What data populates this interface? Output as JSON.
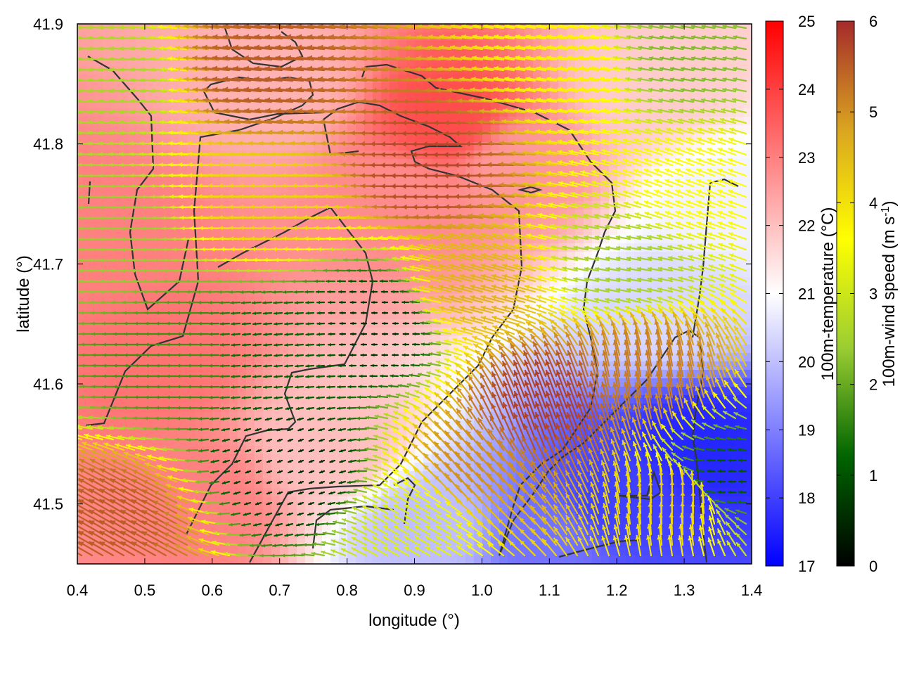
{
  "chart_data": {
    "type": "heatmap",
    "xlabel": "longitude (°)",
    "ylabel": "latitude (°)",
    "xlim": [
      0.4,
      1.4
    ],
    "ylim": [
      41.45,
      41.9
    ],
    "x_ticks": [
      "0.4",
      "0.5",
      "0.6",
      "0.7",
      "0.8",
      "0.9",
      "1.0",
      "1.1",
      "1.2",
      "1.3",
      "1.4"
    ],
    "y_ticks": [
      "41.5",
      "41.6",
      "41.7",
      "41.8",
      "41.9"
    ],
    "x_tick_values": [
      0.4,
      0.5,
      0.6,
      0.7,
      0.8,
      0.9,
      1.0,
      1.1,
      1.2,
      1.3,
      1.4
    ],
    "y_tick_values": [
      41.5,
      41.6,
      41.7,
      41.8,
      41.9
    ],
    "grid": false,
    "temperature_colorbar": {
      "label": "100m-temperature (°C)",
      "range": [
        17,
        25
      ],
      "ticks": [
        "17",
        "18",
        "19",
        "20",
        "21",
        "22",
        "23",
        "24",
        "25"
      ],
      "tick_values": [
        17,
        18,
        19,
        20,
        21,
        22,
        23,
        24,
        25
      ],
      "colors": [
        "#0000ff",
        "#ffffff",
        "#ff0000"
      ]
    },
    "wind_colorbar": {
      "label_main": "100m-wind speed (m s",
      "label_sup": "-1",
      "label_end": ")",
      "range": [
        0,
        6
      ],
      "ticks": [
        "0",
        "1",
        "2",
        "3",
        "4",
        "5",
        "6"
      ],
      "tick_values": [
        0,
        1,
        2,
        3,
        4,
        5,
        6
      ],
      "colors": [
        "#000000",
        "#006400",
        "#9acd32",
        "#ffff00",
        "#daa520",
        "#a52a2a"
      ]
    },
    "temperature_regions": [
      {
        "lon": 0.52,
        "lat": 41.62,
        "value": 23.2
      },
      {
        "lon": 0.45,
        "lat": 41.72,
        "value": 23.0
      },
      {
        "lon": 0.58,
        "lat": 41.5,
        "value": 23.0
      },
      {
        "lon": 0.95,
        "lat": 41.82,
        "value": 23.8
      },
      {
        "lon": 0.88,
        "lat": 41.75,
        "value": 22.8
      },
      {
        "lon": 1.05,
        "lat": 41.78,
        "value": 22.6
      },
      {
        "lon": 0.7,
        "lat": 41.85,
        "value": 22.2
      },
      {
        "lon": 0.78,
        "lat": 41.55,
        "value": 22.0
      },
      {
        "lon": 1.25,
        "lat": 41.85,
        "value": 21.8
      },
      {
        "lon": 1.2,
        "lat": 41.5,
        "value": 18.0
      },
      {
        "lon": 1.33,
        "lat": 41.55,
        "value": 17.6
      },
      {
        "lon": 1.1,
        "lat": 41.47,
        "value": 18.8
      },
      {
        "lon": 0.92,
        "lat": 41.48,
        "value": 20.0
      },
      {
        "lon": 1.28,
        "lat": 41.66,
        "value": 20.4
      },
      {
        "lon": 1.36,
        "lat": 41.75,
        "value": 20.8
      }
    ],
    "wind_regions": [
      {
        "lon": 0.55,
        "lat": 41.62,
        "speed": 1.7,
        "dir_deg": 180
      },
      {
        "lon": 0.45,
        "lat": 41.72,
        "speed": 2.4,
        "dir_deg": 180
      },
      {
        "lon": 0.45,
        "lat": 41.85,
        "speed": 2.6,
        "dir_deg": 175
      },
      {
        "lon": 0.72,
        "lat": 41.53,
        "speed": 0.5,
        "dir_deg": 200
      },
      {
        "lon": 0.7,
        "lat": 41.63,
        "speed": 1.2,
        "dir_deg": 185
      },
      {
        "lon": 0.85,
        "lat": 41.65,
        "speed": 0.6,
        "dir_deg": 180
      },
      {
        "lon": 0.7,
        "lat": 41.75,
        "speed": 4.2,
        "dir_deg": 178
      },
      {
        "lon": 0.7,
        "lat": 41.86,
        "speed": 5.5,
        "dir_deg": 175
      },
      {
        "lon": 0.95,
        "lat": 41.78,
        "speed": 5.7,
        "dir_deg": 180
      },
      {
        "lon": 1.0,
        "lat": 41.68,
        "speed": 4.6,
        "dir_deg": 165
      },
      {
        "lon": 1.15,
        "lat": 41.86,
        "speed": 3.8,
        "dir_deg": 172
      },
      {
        "lon": 1.3,
        "lat": 41.87,
        "speed": 2.2,
        "dir_deg": 170
      },
      {
        "lon": 1.32,
        "lat": 41.76,
        "speed": 3.6,
        "dir_deg": 160
      },
      {
        "lon": 1.1,
        "lat": 41.57,
        "speed": 5.8,
        "dir_deg": 110
      },
      {
        "lon": 1.25,
        "lat": 41.6,
        "speed": 5.2,
        "dir_deg": 100
      },
      {
        "lon": 1.3,
        "lat": 41.5,
        "speed": 4.3,
        "dir_deg": 90
      },
      {
        "lon": 1.36,
        "lat": 41.52,
        "speed": 1.0,
        "dir_deg": 180
      },
      {
        "lon": 1.0,
        "lat": 41.52,
        "speed": 5.0,
        "dir_deg": 130
      },
      {
        "lon": 0.92,
        "lat": 41.48,
        "speed": 3.2,
        "dir_deg": 150
      },
      {
        "lon": 1.22,
        "lat": 41.7,
        "speed": 2.5,
        "dir_deg": 170
      },
      {
        "lon": 0.47,
        "lat": 41.48,
        "speed": 5.5,
        "dir_deg": 150
      }
    ]
  }
}
